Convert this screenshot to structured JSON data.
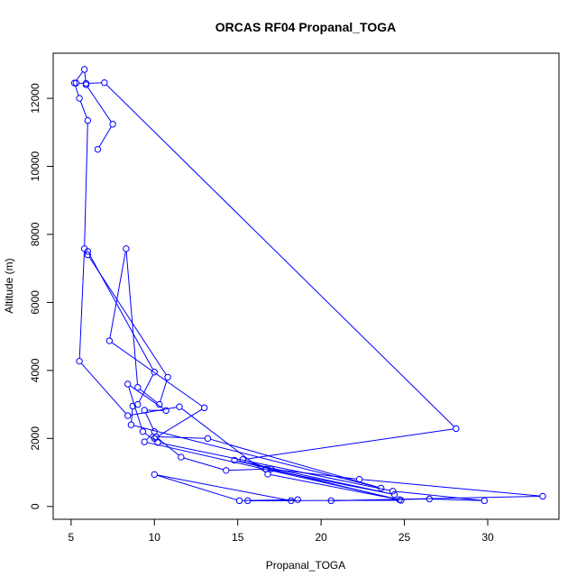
{
  "chart_data": {
    "type": "line",
    "title": "ORCAS RF04 Propanal_TOGA",
    "xlabel": "Propanal_TOGA",
    "ylabel": "Altitude (m)",
    "xlim": [
      4.9,
      33.3
    ],
    "ylim": [
      100,
      12850
    ],
    "x_ticks": [
      5,
      10,
      15,
      20,
      25,
      30
    ],
    "y_ticks": [
      0,
      2000,
      4000,
      6000,
      8000,
      10000,
      12000
    ],
    "color": "#0000ff",
    "grid": false,
    "legend": "none",
    "series": [
      {
        "points": [
          [
            5.3,
            12450
          ],
          [
            5.9,
            12440
          ],
          [
            7.0,
            12460
          ],
          [
            28.1,
            2290
          ],
          [
            15.3,
            1380
          ],
          [
            17.0,
            1100
          ],
          [
            22.3,
            800
          ],
          [
            33.3,
            300
          ],
          [
            20.6,
            170
          ],
          [
            26.5,
            220
          ],
          [
            29.8,
            170
          ],
          [
            24.3,
            450
          ],
          [
            10.2,
            1880
          ],
          [
            9.3,
            2200
          ],
          [
            8.4,
            3600
          ],
          [
            10.7,
            2820
          ],
          [
            9.4,
            2830
          ],
          [
            10.0,
            2200
          ],
          [
            9.4,
            1900
          ],
          [
            24.7,
            200
          ],
          [
            16.8,
            950
          ],
          [
            11.5,
            2930
          ],
          [
            8.4,
            2670
          ],
          [
            5.5,
            4270
          ],
          [
            5.8,
            7580
          ],
          [
            6.0,
            11350
          ],
          [
            5.5,
            12000
          ],
          [
            5.2,
            12450
          ],
          [
            5.8,
            12850
          ],
          [
            5.9,
            12400
          ],
          [
            7.5,
            11240
          ],
          [
            6.6,
            10500
          ]
        ]
      },
      {
        "points": [
          [
            6.0,
            7500
          ],
          [
            10.0,
            3950
          ],
          [
            9.0,
            3000
          ],
          [
            8.7,
            2950
          ],
          [
            8.6,
            2400
          ],
          [
            23.6,
            540
          ],
          [
            13.2,
            2000
          ],
          [
            10.1,
            2050
          ],
          [
            11.6,
            1450
          ],
          [
            14.3,
            1060
          ],
          [
            16.7,
            1100
          ],
          [
            24.4,
            350
          ],
          [
            14.8,
            1360
          ],
          [
            24.8,
            180
          ],
          [
            15.6,
            170
          ],
          [
            18.2,
            170
          ],
          [
            10.0,
            940
          ],
          [
            15.1,
            170
          ],
          [
            18.6,
            200
          ]
        ]
      },
      {
        "points": [
          [
            6.0,
            7400
          ],
          [
            10.8,
            3800
          ],
          [
            10.3,
            3000
          ],
          [
            9.0,
            3500
          ],
          [
            8.3,
            7580
          ],
          [
            7.3,
            4870
          ],
          [
            13.0,
            2900
          ],
          [
            10.0,
            2000
          ]
        ]
      }
    ]
  }
}
